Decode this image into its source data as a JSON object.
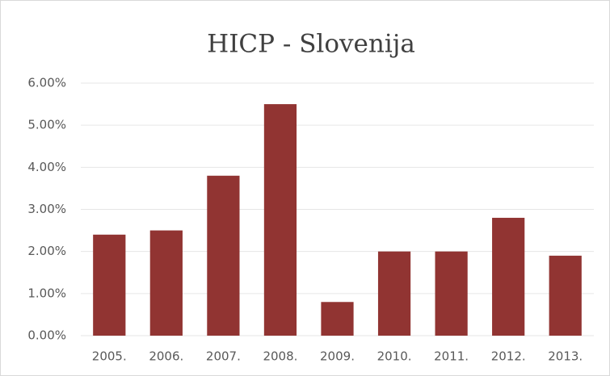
{
  "chart_data": {
    "type": "bar",
    "title": "HICP - Slovenija",
    "categories": [
      "2005.",
      "2006.",
      "2007.",
      "2008.",
      "2009.",
      "2010.",
      "2011.",
      "2012.",
      "2013."
    ],
    "values": [
      2.4,
      2.5,
      3.8,
      5.5,
      0.8,
      2.0,
      2.0,
      2.8,
      1.9
    ],
    "color": "#913432",
    "ylim": [
      0,
      6
    ],
    "yticks": [
      {
        "value": 0,
        "label": "0.00%"
      },
      {
        "value": 1,
        "label": "1.00%"
      },
      {
        "value": 2,
        "label": "2.00%"
      },
      {
        "value": 3,
        "label": "3.00%"
      },
      {
        "value": 4,
        "label": "4.00%"
      },
      {
        "value": 5,
        "label": "5.00%"
      },
      {
        "value": 6,
        "label": "6.00%"
      }
    ],
    "grid": true
  }
}
